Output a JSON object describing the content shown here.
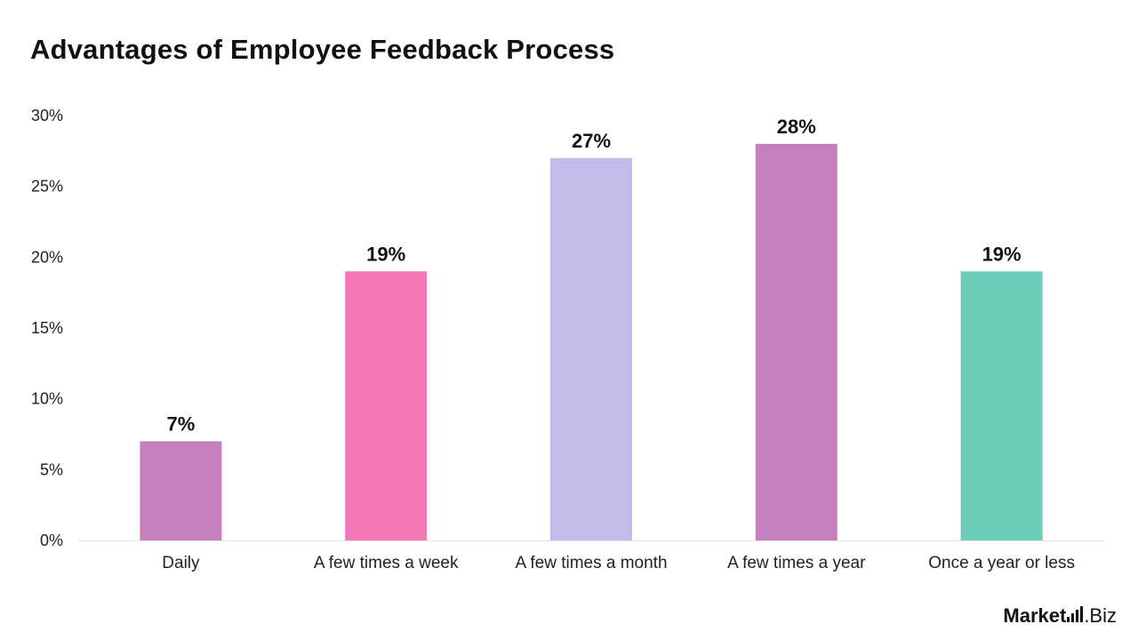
{
  "chart_data": {
    "type": "bar",
    "title": "Advantages of Employee Feedback Process",
    "xlabel": "",
    "ylabel": "",
    "categories": [
      "Daily",
      "A few times a week",
      "A few times a month",
      "A few times a year",
      "Once a year or less"
    ],
    "values": [
      7,
      19,
      27,
      28,
      19
    ],
    "value_labels": [
      "7%",
      "19%",
      "27%",
      "28%",
      "19%"
    ],
    "colors": [
      "#c47fbd",
      "#f577b7",
      "#c3bbe9",
      "#c47fbd",
      "#6ccdba"
    ],
    "ylim": [
      0,
      30
    ],
    "yticks": [
      0,
      5,
      10,
      15,
      20,
      25,
      30
    ],
    "ytick_labels": [
      "0%",
      "5%",
      "10%",
      "15%",
      "20%",
      "25%",
      "30%"
    ],
    "grid": false,
    "legend": "none"
  },
  "brand": {
    "main": "Market",
    "suffix": ".Biz",
    "logo_icon": "bar-chart-logo-icon"
  }
}
